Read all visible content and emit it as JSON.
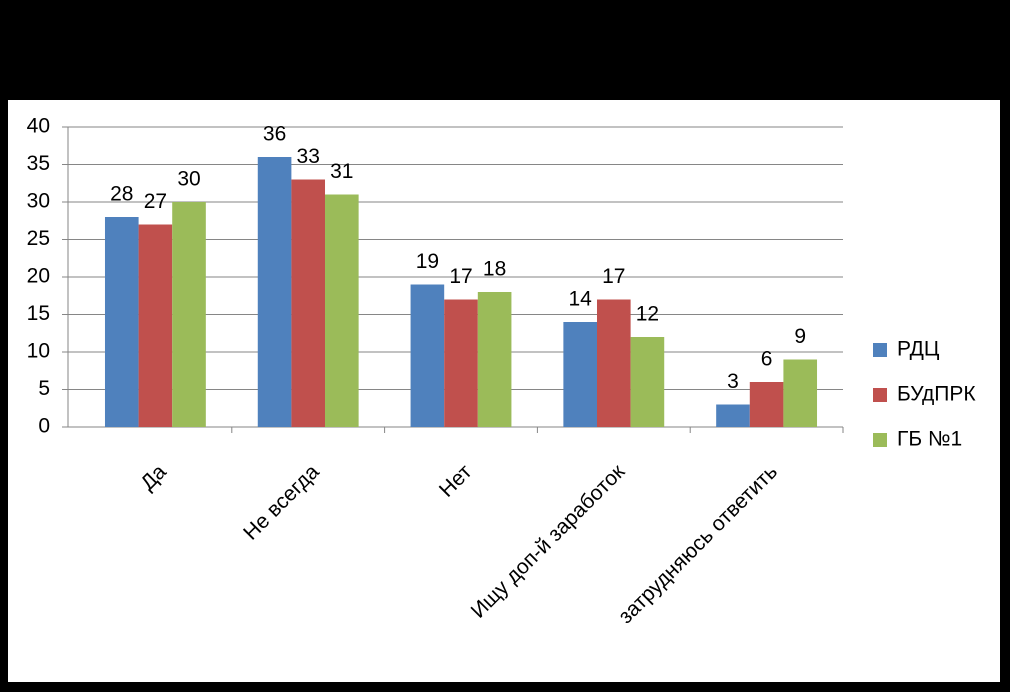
{
  "chart_data": {
    "type": "bar",
    "categories": [
      "Да",
      "Не всегда",
      "Нет",
      "Ищу доп-й заработок",
      "затрудняюсь ответить"
    ],
    "series": [
      {
        "name": "РДЦ",
        "color": "#4f81bd",
        "values": [
          28,
          36,
          19,
          14,
          3
        ]
      },
      {
        "name": "БУдПРК",
        "color": "#c0504d",
        "values": [
          27,
          33,
          17,
          17,
          6
        ]
      },
      {
        "name": "ГБ №1",
        "color": "#9bbb59",
        "values": [
          30,
          31,
          18,
          12,
          9
        ]
      }
    ],
    "ylim": [
      0,
      40
    ],
    "yticks": [
      0,
      5,
      10,
      15,
      20,
      25,
      30,
      35,
      40
    ],
    "grid": true,
    "legend": "right"
  }
}
